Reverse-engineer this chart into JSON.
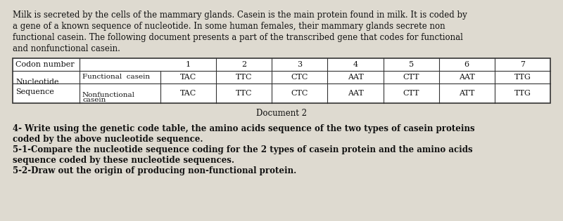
{
  "bg_color": "#dedad0",
  "paragraph": "Milk is secreted by the cells of the mammary glands. Casein is the main protein found in milk. It is coded by\na gene of a known sequence of nucleotide. In some human females, their mammary glands secrete non\nfunctional casein. The following document presents a part of the transcribed gene that codes for functional\nand nonfunctional casein.",
  "codon_numbers": [
    "1",
    "2",
    "3",
    "4",
    "5",
    "6",
    "7"
  ],
  "functional_codons": [
    "TAC",
    "TTC",
    "CTC",
    "AAT",
    "CTT",
    "AAT",
    "TTG"
  ],
  "nonfunctional_codons": [
    "TAC",
    "TTC",
    "CTC",
    "AAT",
    "CTT",
    "ATT",
    "TTG"
  ],
  "doc_label": "Document 2",
  "questions": [
    "4- Write using the genetic code table, the amino acids sequence of the two types of casein proteins",
    "coded by the above nucleotide sequence.",
    "5-1-Compare the nucleotide sequence coding for the 2 types of casein protein and the amino acids",
    "sequence coded by these nucleotide sequences.",
    "5-2-Draw out the origin of producing non-functional protein."
  ],
  "font_size_para": 8.5,
  "font_size_table": 8.0,
  "font_size_questions": 8.5
}
